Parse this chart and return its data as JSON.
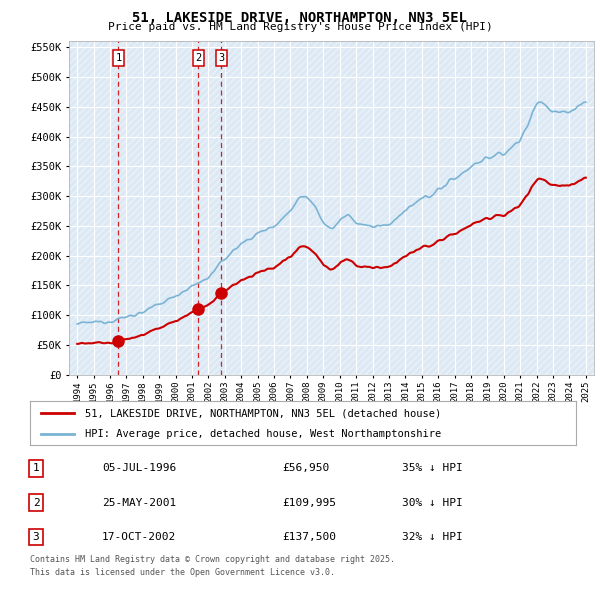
{
  "title": "51, LAKESIDE DRIVE, NORTHAMPTON, NN3 5EL",
  "subtitle": "Price paid vs. HM Land Registry's House Price Index (HPI)",
  "legend_line1": "51, LAKESIDE DRIVE, NORTHAMPTON, NN3 5EL (detached house)",
  "legend_line2": "HPI: Average price, detached house, West Northamptonshire",
  "footer1": "Contains HM Land Registry data © Crown copyright and database right 2025.",
  "footer2": "This data is licensed under the Open Government Licence v3.0.",
  "table": [
    {
      "num": "1",
      "date": "05-JUL-1996",
      "price": "£56,950",
      "hpi": "35% ↓ HPI"
    },
    {
      "num": "2",
      "date": "25-MAY-2001",
      "price": "£109,995",
      "hpi": "30% ↓ HPI"
    },
    {
      "num": "3",
      "date": "17-OCT-2002",
      "price": "£137,500",
      "hpi": "32% ↓ HPI"
    }
  ],
  "sale_dates": [
    1996.51,
    2001.39,
    2002.79
  ],
  "sale_prices": [
    56950,
    109995,
    137500
  ],
  "hpi_color": "#7ab3d4",
  "sale_color": "#cc0000",
  "vline_color": "#cc0000",
  "background_color": "#ffffff",
  "plot_bg": "#dce9f5",
  "grid_color": "#ffffff",
  "ylim": [
    0,
    560000
  ],
  "xlim": [
    1993.5,
    2025.5
  ],
  "yticks": [
    0,
    50000,
    100000,
    150000,
    200000,
    250000,
    300000,
    350000,
    400000,
    450000,
    500000,
    550000
  ],
  "ytick_labels": [
    "£0",
    "£50K",
    "£100K",
    "£150K",
    "£200K",
    "£250K",
    "£300K",
    "£350K",
    "£400K",
    "£450K",
    "£500K",
    "£550K"
  ],
  "xticks": [
    1994,
    1995,
    1996,
    1997,
    1998,
    1999,
    2000,
    2001,
    2002,
    2003,
    2004,
    2005,
    2006,
    2007,
    2008,
    2009,
    2010,
    2011,
    2012,
    2013,
    2014,
    2015,
    2016,
    2017,
    2018,
    2019,
    2020,
    2021,
    2022,
    2023,
    2024,
    2025
  ]
}
